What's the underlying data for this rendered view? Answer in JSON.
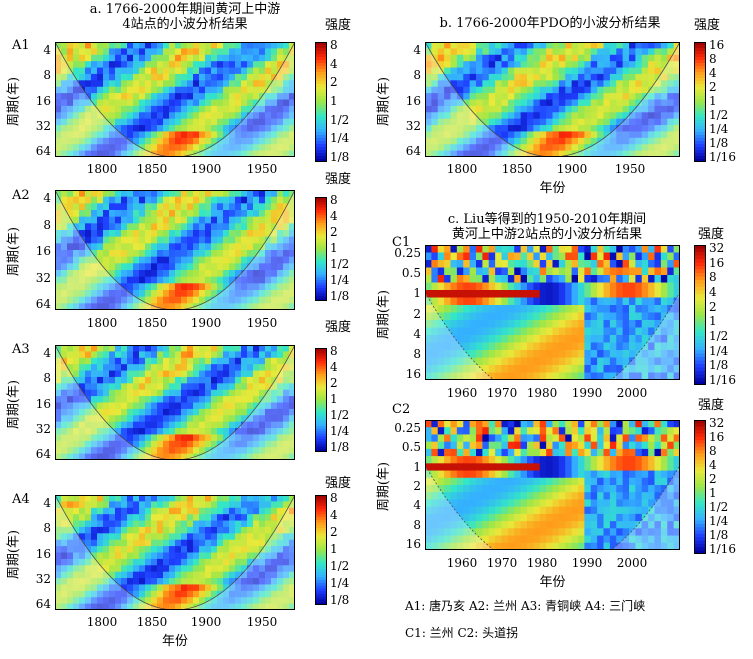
{
  "titles": {
    "a": "a. 1766-2000年期间黄河上中游\n4站点的小波分析结果",
    "b": "b. 1766-2000年PDO的小波分析结果",
    "c": "c. Liu等得到的1950-2010年期间\n黄河上中游2站点的小波分析结果"
  },
  "axis_titles": {
    "period": "周期(年)",
    "year": "年份",
    "intensity": "强度"
  },
  "panels": [
    {
      "id": "A1",
      "label": "A1",
      "yticks": [
        "4",
        "8",
        "16",
        "32",
        "64"
      ],
      "xticks": [
        "1800",
        "1850",
        "1900",
        "1950"
      ],
      "cbar": [
        "8",
        "4",
        "2",
        "1",
        "1/2",
        "1/4",
        "1/8"
      ],
      "show_xtitle": false
    },
    {
      "id": "A2",
      "label": "A2",
      "yticks": [
        "4",
        "8",
        "16",
        "32",
        "64"
      ],
      "xticks": [
        "1800",
        "1850",
        "1900",
        "1950"
      ],
      "cbar": [
        "8",
        "4",
        "2",
        "1",
        "1/2",
        "1/4",
        "1/8"
      ],
      "show_xtitle": false
    },
    {
      "id": "A3",
      "label": "A3",
      "yticks": [
        "4",
        "8",
        "16",
        "32",
        "64"
      ],
      "xticks": [
        "1850",
        "1900",
        "1950"
      ],
      "cbar": [
        "8",
        "4",
        "2",
        "1",
        "1/2",
        "1/4",
        "1/8"
      ],
      "show_xtitle": false
    },
    {
      "id": "A4",
      "label": "A4",
      "yticks": [
        "4",
        "8",
        "16",
        "32",
        "64"
      ],
      "xticks": [
        "1800",
        "1850",
        "1900",
        "1950"
      ],
      "cbar": [
        "8",
        "4",
        "2",
        "1",
        "1/2",
        "1/4",
        "1/8"
      ],
      "show_xtitle": true
    },
    {
      "id": "B",
      "label": "",
      "yticks": [
        "4",
        "8",
        "16",
        "32",
        "64"
      ],
      "xticks": [
        "1800",
        "1850",
        "1900",
        "1950"
      ],
      "cbar": [
        "16",
        "8",
        "4",
        "2",
        "1",
        "1/2",
        "1/4",
        "1/8",
        "1/16"
      ],
      "show_xtitle": true
    },
    {
      "id": "C1",
      "label": "C1",
      "yticks": [
        "0.25",
        "0.5",
        "1",
        "2",
        "4",
        "8",
        "16"
      ],
      "xticks": [
        "1960",
        "1970",
        "1980",
        "1990",
        "2000"
      ],
      "cbar": [
        "32",
        "16",
        "8",
        "4",
        "2",
        "1",
        "1/2",
        "1/4",
        "1/8",
        "1/16"
      ],
      "show_xtitle": false
    },
    {
      "id": "C2",
      "label": "C2",
      "yticks": [
        "0.25",
        "0.5",
        "1",
        "2",
        "4",
        "8",
        "16"
      ],
      "xticks": [
        "1960",
        "1970",
        "1980",
        "1990",
        "2000"
      ],
      "cbar": [
        "32",
        "16",
        "8",
        "4",
        "2",
        "1",
        "1/2",
        "1/4",
        "1/8",
        "1/16"
      ],
      "show_xtitle": true
    }
  ],
  "legend": {
    "line1": "A1: 唐乃亥   A2: 兰州   A3: 青铜峡   A4: 三门峡",
    "line2": "C1: 兰州     C2: 头道拐"
  },
  "chart_data": [
    {
      "type": "heatmap",
      "title": "a. 1766-2000年期间黄河上中游4站点的小波分析结果",
      "panel": "A1",
      "xlabel": "",
      "ylabel": "周期(年)",
      "x_ticks": [
        1800,
        1850,
        1900,
        1950
      ],
      "y_ticks": [
        4,
        8,
        16,
        32,
        64
      ],
      "y_scale": "log2",
      "colorbar_label": "强度",
      "colorbar_ticks": [
        "8",
        "4",
        "2",
        "1",
        "1/2",
        "1/4",
        "1/8"
      ]
    },
    {
      "type": "heatmap",
      "panel": "A2",
      "xlabel": "",
      "ylabel": "周期(年)",
      "x_ticks": [
        1800,
        1850,
        1900,
        1950
      ],
      "y_ticks": [
        4,
        8,
        16,
        32,
        64
      ],
      "y_scale": "log2",
      "colorbar_label": "强度",
      "colorbar_ticks": [
        "8",
        "4",
        "2",
        "1",
        "1/2",
        "1/4",
        "1/8"
      ]
    },
    {
      "type": "heatmap",
      "panel": "A3",
      "xlabel": "",
      "ylabel": "周期(年)",
      "x_ticks": [
        1850,
        1900,
        1950
      ],
      "y_ticks": [
        4,
        8,
        16,
        32,
        64
      ],
      "y_scale": "log2",
      "colorbar_label": "强度",
      "colorbar_ticks": [
        "8",
        "4",
        "2",
        "1",
        "1/2",
        "1/4",
        "1/8"
      ]
    },
    {
      "type": "heatmap",
      "panel": "A4",
      "xlabel": "年份",
      "ylabel": "周期(年)",
      "x_ticks": [
        1800,
        1850,
        1900,
        1950
      ],
      "y_ticks": [
        4,
        8,
        16,
        32,
        64
      ],
      "y_scale": "log2",
      "colorbar_label": "强度",
      "colorbar_ticks": [
        "8",
        "4",
        "2",
        "1",
        "1/2",
        "1/4",
        "1/8"
      ]
    },
    {
      "type": "heatmap",
      "title": "b. 1766-2000年PDO的小波分析结果",
      "panel": "B",
      "xlabel": "年份",
      "ylabel": "周期(年)",
      "x_ticks": [
        1800,
        1850,
        1900,
        1950
      ],
      "y_ticks": [
        4,
        8,
        16,
        32,
        64
      ],
      "y_scale": "log2",
      "colorbar_label": "强度",
      "colorbar_ticks": [
        "16",
        "8",
        "4",
        "2",
        "1",
        "1/2",
        "1/4",
        "1/8",
        "1/16"
      ]
    },
    {
      "type": "heatmap",
      "title": "c. Liu等得到的1950-2010年期间黄河上中游2站点的小波分析结果",
      "panel": "C1",
      "xlabel": "",
      "ylabel": "周期(年)",
      "x_ticks": [
        1960,
        1970,
        1980,
        1990,
        2000
      ],
      "y_ticks": [
        0.25,
        0.5,
        1,
        2,
        4,
        8,
        16
      ],
      "y_scale": "log2",
      "colorbar_label": "强度",
      "colorbar_ticks": [
        "32",
        "16",
        "8",
        "4",
        "2",
        "1",
        "1/2",
        "1/4",
        "1/8",
        "1/16"
      ]
    },
    {
      "type": "heatmap",
      "panel": "C2",
      "xlabel": "年份",
      "ylabel": "周期(年)",
      "x_ticks": [
        1960,
        1970,
        1980,
        1990,
        2000
      ],
      "y_ticks": [
        0.25,
        0.5,
        1,
        2,
        4,
        8,
        16
      ],
      "y_scale": "log2",
      "colorbar_label": "强度",
      "colorbar_ticks": [
        "32",
        "16",
        "8",
        "4",
        "2",
        "1",
        "1/2",
        "1/4",
        "1/8",
        "1/16"
      ]
    }
  ]
}
